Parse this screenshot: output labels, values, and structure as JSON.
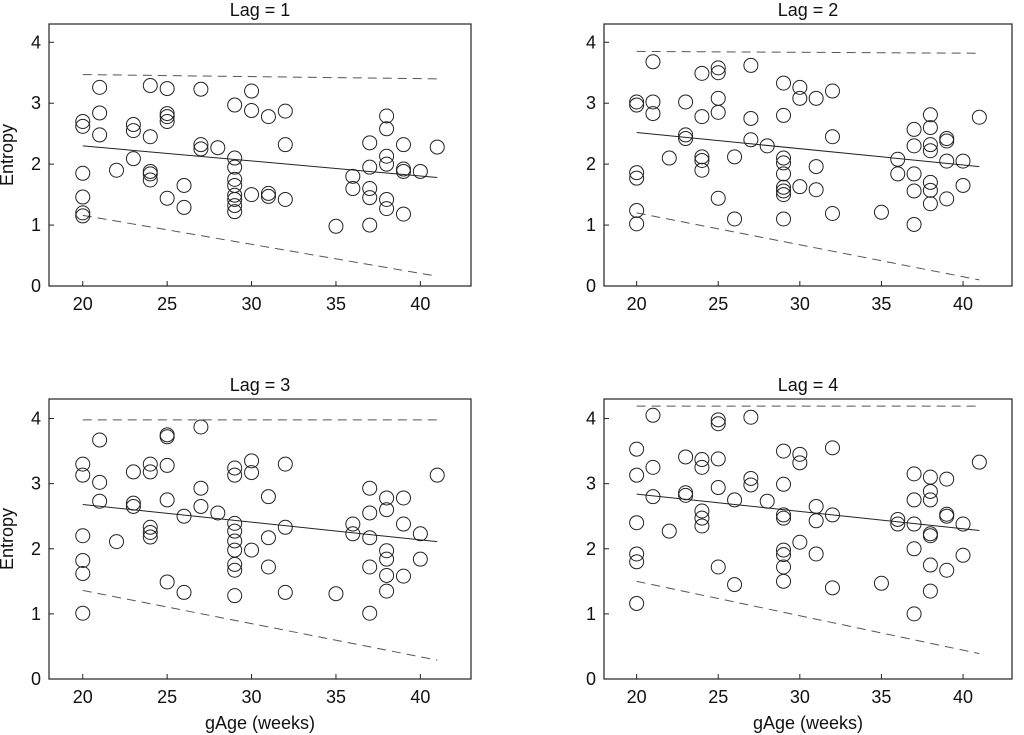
{
  "figure": {
    "background": "#ffffff",
    "stroke_color": "#222222",
    "dash_color": "#555555"
  },
  "chart_data": [
    {
      "type": "scatter",
      "title": "Lag = 1",
      "xlabel": "",
      "ylabel": "Entropy",
      "xlim": [
        18,
        43
      ],
      "ylim": [
        0,
        4.3
      ],
      "xticks": [
        20,
        25,
        30,
        35,
        40
      ],
      "yticks": [
        0,
        1,
        2,
        3,
        4
      ],
      "points": [
        [
          20,
          2.7
        ],
        [
          20,
          2.62
        ],
        [
          20,
          1.85
        ],
        [
          20,
          1.46
        ],
        [
          20,
          1.2
        ],
        [
          20,
          1.15
        ],
        [
          21,
          3.26
        ],
        [
          21,
          2.84
        ],
        [
          21,
          2.48
        ],
        [
          22,
          1.9
        ],
        [
          23,
          2.65
        ],
        [
          23,
          2.55
        ],
        [
          23,
          2.09
        ],
        [
          24,
          3.29
        ],
        [
          24,
          2.45
        ],
        [
          24,
          1.88
        ],
        [
          24,
          1.84
        ],
        [
          24,
          1.74
        ],
        [
          25,
          3.24
        ],
        [
          25,
          2.83
        ],
        [
          25,
          2.78
        ],
        [
          25,
          2.7
        ],
        [
          25,
          1.44
        ],
        [
          26,
          1.65
        ],
        [
          26,
          1.29
        ],
        [
          27,
          3.23
        ],
        [
          27,
          2.32
        ],
        [
          27,
          2.25
        ],
        [
          28,
          2.27
        ],
        [
          29,
          2.97
        ],
        [
          29,
          2.1
        ],
        [
          29,
          1.95
        ],
        [
          29,
          1.75
        ],
        [
          29,
          1.65
        ],
        [
          29,
          1.49
        ],
        [
          29,
          1.42
        ],
        [
          29,
          1.32
        ],
        [
          29,
          1.22
        ],
        [
          30,
          3.2
        ],
        [
          30,
          2.88
        ],
        [
          30,
          1.5
        ],
        [
          31,
          2.78
        ],
        [
          31,
          1.52
        ],
        [
          31,
          1.47
        ],
        [
          32,
          2.87
        ],
        [
          32,
          2.32
        ],
        [
          32,
          1.42
        ],
        [
          35,
          0.98
        ],
        [
          36,
          1.8
        ],
        [
          36,
          1.6
        ],
        [
          37,
          2.35
        ],
        [
          37,
          1.95
        ],
        [
          37,
          1.6
        ],
        [
          37,
          1.45
        ],
        [
          37,
          1.0
        ],
        [
          38,
          2.79
        ],
        [
          38,
          2.58
        ],
        [
          38,
          2.13
        ],
        [
          38,
          2.0
        ],
        [
          38,
          1.42
        ],
        [
          38,
          1.27
        ],
        [
          39,
          2.32
        ],
        [
          39,
          1.92
        ],
        [
          39,
          1.88
        ],
        [
          39,
          1.18
        ],
        [
          40,
          1.88
        ],
        [
          41,
          2.28
        ]
      ],
      "fit_line": {
        "x": [
          20,
          41
        ],
        "y": [
          2.3,
          1.78
        ]
      },
      "upper_bound": {
        "x": [
          20,
          41
        ],
        "y": [
          3.47,
          3.4
        ]
      },
      "lower_bound": {
        "x": [
          20,
          41
        ],
        "y": [
          1.16,
          0.16
        ]
      }
    },
    {
      "type": "scatter",
      "title": "Lag = 2",
      "xlabel": "",
      "ylabel": "",
      "xlim": [
        18,
        43
      ],
      "ylim": [
        0,
        4.3
      ],
      "xticks": [
        20,
        25,
        30,
        35,
        40
      ],
      "yticks": [
        0,
        1,
        2,
        3,
        4
      ],
      "points": [
        [
          20,
          3.02
        ],
        [
          20,
          2.97
        ],
        [
          20,
          1.86
        ],
        [
          20,
          1.77
        ],
        [
          20,
          1.24
        ],
        [
          20,
          1.02
        ],
        [
          21,
          3.68
        ],
        [
          21,
          3.02
        ],
        [
          21,
          2.83
        ],
        [
          22,
          2.1
        ],
        [
          23,
          3.02
        ],
        [
          23,
          2.48
        ],
        [
          23,
          2.42
        ],
        [
          24,
          3.49
        ],
        [
          24,
          2.78
        ],
        [
          24,
          2.12
        ],
        [
          24,
          2.06
        ],
        [
          24,
          1.9
        ],
        [
          25,
          3.58
        ],
        [
          25,
          3.5
        ],
        [
          25,
          3.08
        ],
        [
          25,
          2.85
        ],
        [
          25,
          1.44
        ],
        [
          26,
          2.12
        ],
        [
          26,
          1.1
        ],
        [
          27,
          3.62
        ],
        [
          27,
          2.75
        ],
        [
          27,
          2.4
        ],
        [
          28,
          2.3
        ],
        [
          29,
          3.33
        ],
        [
          29,
          2.8
        ],
        [
          29,
          2.1
        ],
        [
          29,
          2.02
        ],
        [
          29,
          1.84
        ],
        [
          29,
          1.62
        ],
        [
          29,
          1.56
        ],
        [
          29,
          1.5
        ],
        [
          29,
          1.1
        ],
        [
          30,
          3.26
        ],
        [
          30,
          3.08
        ],
        [
          30,
          1.63
        ],
        [
          31,
          3.08
        ],
        [
          31,
          1.96
        ],
        [
          31,
          1.58
        ],
        [
          32,
          3.2
        ],
        [
          32,
          2.45
        ],
        [
          32,
          1.19
        ],
        [
          35,
          1.21
        ],
        [
          36,
          2.08
        ],
        [
          36,
          1.84
        ],
        [
          37,
          2.57
        ],
        [
          37,
          2.3
        ],
        [
          37,
          1.84
        ],
        [
          37,
          1.56
        ],
        [
          37,
          1.01
        ],
        [
          38,
          2.81
        ],
        [
          38,
          2.6
        ],
        [
          38,
          2.32
        ],
        [
          38,
          2.22
        ],
        [
          38,
          1.7
        ],
        [
          38,
          1.57
        ],
        [
          38,
          1.35
        ],
        [
          39,
          2.42
        ],
        [
          39,
          2.38
        ],
        [
          39,
          2.05
        ],
        [
          39,
          1.43
        ],
        [
          40,
          2.05
        ],
        [
          40,
          1.65
        ],
        [
          41,
          2.77
        ]
      ],
      "fit_line": {
        "x": [
          20,
          41
        ],
        "y": [
          2.52,
          1.96
        ]
      },
      "upper_bound": {
        "x": [
          20,
          41
        ],
        "y": [
          3.85,
          3.82
        ]
      },
      "lower_bound": {
        "x": [
          20,
          41
        ],
        "y": [
          1.2,
          0.1
        ]
      }
    },
    {
      "type": "scatter",
      "title": "Lag = 3",
      "xlabel": "gAge (weeks)",
      "ylabel": "Entropy",
      "xlim": [
        18,
        43
      ],
      "ylim": [
        0,
        4.3
      ],
      "xticks": [
        20,
        25,
        30,
        35,
        40
      ],
      "yticks": [
        0,
        1,
        2,
        3,
        4
      ],
      "points": [
        [
          20,
          3.3
        ],
        [
          20,
          3.13
        ],
        [
          20,
          2.2
        ],
        [
          20,
          1.82
        ],
        [
          20,
          1.62
        ],
        [
          20,
          1.01
        ],
        [
          21,
          3.67
        ],
        [
          21,
          3.02
        ],
        [
          21,
          2.73
        ],
        [
          22,
          2.11
        ],
        [
          23,
          3.18
        ],
        [
          23,
          2.7
        ],
        [
          23,
          2.65
        ],
        [
          24,
          3.3
        ],
        [
          24,
          3.18
        ],
        [
          24,
          2.33
        ],
        [
          24,
          2.25
        ],
        [
          24,
          2.18
        ],
        [
          25,
          3.75
        ],
        [
          25,
          3.72
        ],
        [
          25,
          3.28
        ],
        [
          25,
          2.75
        ],
        [
          25,
          1.49
        ],
        [
          26,
          2.5
        ],
        [
          26,
          1.33
        ],
        [
          27,
          3.87
        ],
        [
          27,
          2.93
        ],
        [
          27,
          2.65
        ],
        [
          28,
          2.55
        ],
        [
          29,
          3.24
        ],
        [
          29,
          3.13
        ],
        [
          29,
          2.39
        ],
        [
          29,
          2.27
        ],
        [
          29,
          2.12
        ],
        [
          29,
          1.98
        ],
        [
          29,
          1.76
        ],
        [
          29,
          1.67
        ],
        [
          29,
          1.28
        ],
        [
          30,
          3.35
        ],
        [
          30,
          3.17
        ],
        [
          30,
          1.98
        ],
        [
          31,
          2.8
        ],
        [
          31,
          2.17
        ],
        [
          31,
          1.72
        ],
        [
          32,
          3.3
        ],
        [
          32,
          2.33
        ],
        [
          32,
          1.33
        ],
        [
          35,
          1.31
        ],
        [
          36,
          2.38
        ],
        [
          36,
          2.23
        ],
        [
          37,
          2.93
        ],
        [
          37,
          2.55
        ],
        [
          37,
          2.17
        ],
        [
          37,
          1.72
        ],
        [
          37,
          1.01
        ],
        [
          38,
          2.78
        ],
        [
          38,
          2.6
        ],
        [
          38,
          1.97
        ],
        [
          38,
          1.84
        ],
        [
          38,
          1.59
        ],
        [
          38,
          1.35
        ],
        [
          39,
          2.78
        ],
        [
          39,
          2.38
        ],
        [
          39,
          1.58
        ],
        [
          40,
          2.23
        ],
        [
          40,
          1.84
        ],
        [
          41,
          3.13
        ]
      ],
      "fit_line": {
        "x": [
          20,
          41
        ],
        "y": [
          2.68,
          2.11
        ]
      },
      "upper_bound": {
        "x": [
          20,
          41
        ],
        "y": [
          3.98,
          3.98
        ]
      },
      "lower_bound": {
        "x": [
          20,
          41
        ],
        "y": [
          1.36,
          0.29
        ]
      }
    },
    {
      "type": "scatter",
      "title": "Lag = 4",
      "xlabel": "gAge (weeks)",
      "ylabel": "",
      "xlim": [
        18,
        43
      ],
      "ylim": [
        0,
        4.3
      ],
      "xticks": [
        20,
        25,
        30,
        35,
        40
      ],
      "yticks": [
        0,
        1,
        2,
        3,
        4
      ],
      "points": [
        [
          20,
          3.53
        ],
        [
          20,
          3.13
        ],
        [
          20,
          2.4
        ],
        [
          20,
          1.92
        ],
        [
          20,
          1.8
        ],
        [
          20,
          1.16
        ],
        [
          21,
          4.05
        ],
        [
          21,
          3.25
        ],
        [
          21,
          2.8
        ],
        [
          22,
          2.27
        ],
        [
          23,
          3.41
        ],
        [
          23,
          2.86
        ],
        [
          23,
          2.82
        ],
        [
          24,
          3.37
        ],
        [
          24,
          3.25
        ],
        [
          24,
          2.58
        ],
        [
          24,
          2.47
        ],
        [
          24,
          2.35
        ],
        [
          25,
          3.98
        ],
        [
          25,
          3.92
        ],
        [
          25,
          3.38
        ],
        [
          25,
          2.94
        ],
        [
          25,
          1.72
        ],
        [
          26,
          2.75
        ],
        [
          26,
          1.45
        ],
        [
          27,
          4.02
        ],
        [
          27,
          3.08
        ],
        [
          27,
          2.98
        ],
        [
          28,
          2.73
        ],
        [
          29,
          3.5
        ],
        [
          29,
          2.99
        ],
        [
          29,
          2.52
        ],
        [
          29,
          2.47
        ],
        [
          29,
          1.98
        ],
        [
          29,
          1.91
        ],
        [
          29,
          1.72
        ],
        [
          29,
          1.5
        ],
        [
          30,
          3.45
        ],
        [
          30,
          3.32
        ],
        [
          30,
          2.1
        ],
        [
          31,
          2.65
        ],
        [
          31,
          2.43
        ],
        [
          31,
          1.92
        ],
        [
          32,
          3.55
        ],
        [
          32,
          2.52
        ],
        [
          32,
          1.4
        ],
        [
          35,
          1.47
        ],
        [
          36,
          2.45
        ],
        [
          36,
          2.38
        ],
        [
          37,
          3.15
        ],
        [
          37,
          2.75
        ],
        [
          37,
          2.38
        ],
        [
          37,
          2.0
        ],
        [
          37,
          1.0
        ],
        [
          38,
          3.1
        ],
        [
          38,
          2.88
        ],
        [
          38,
          2.75
        ],
        [
          38,
          2.23
        ],
        [
          38,
          2.2
        ],
        [
          38,
          1.75
        ],
        [
          38,
          1.35
        ],
        [
          39,
          3.07
        ],
        [
          39,
          2.53
        ],
        [
          39,
          2.5
        ],
        [
          39,
          1.67
        ],
        [
          40,
          2.38
        ],
        [
          40,
          1.9
        ],
        [
          41,
          3.33
        ]
      ],
      "fit_line": {
        "x": [
          20,
          41
        ],
        "y": [
          2.84,
          2.28
        ]
      },
      "upper_bound": {
        "x": [
          20,
          41
        ],
        "y": [
          4.19,
          4.19
        ]
      },
      "lower_bound": {
        "x": [
          20,
          41
        ],
        "y": [
          1.5,
          0.39
        ]
      }
    }
  ]
}
